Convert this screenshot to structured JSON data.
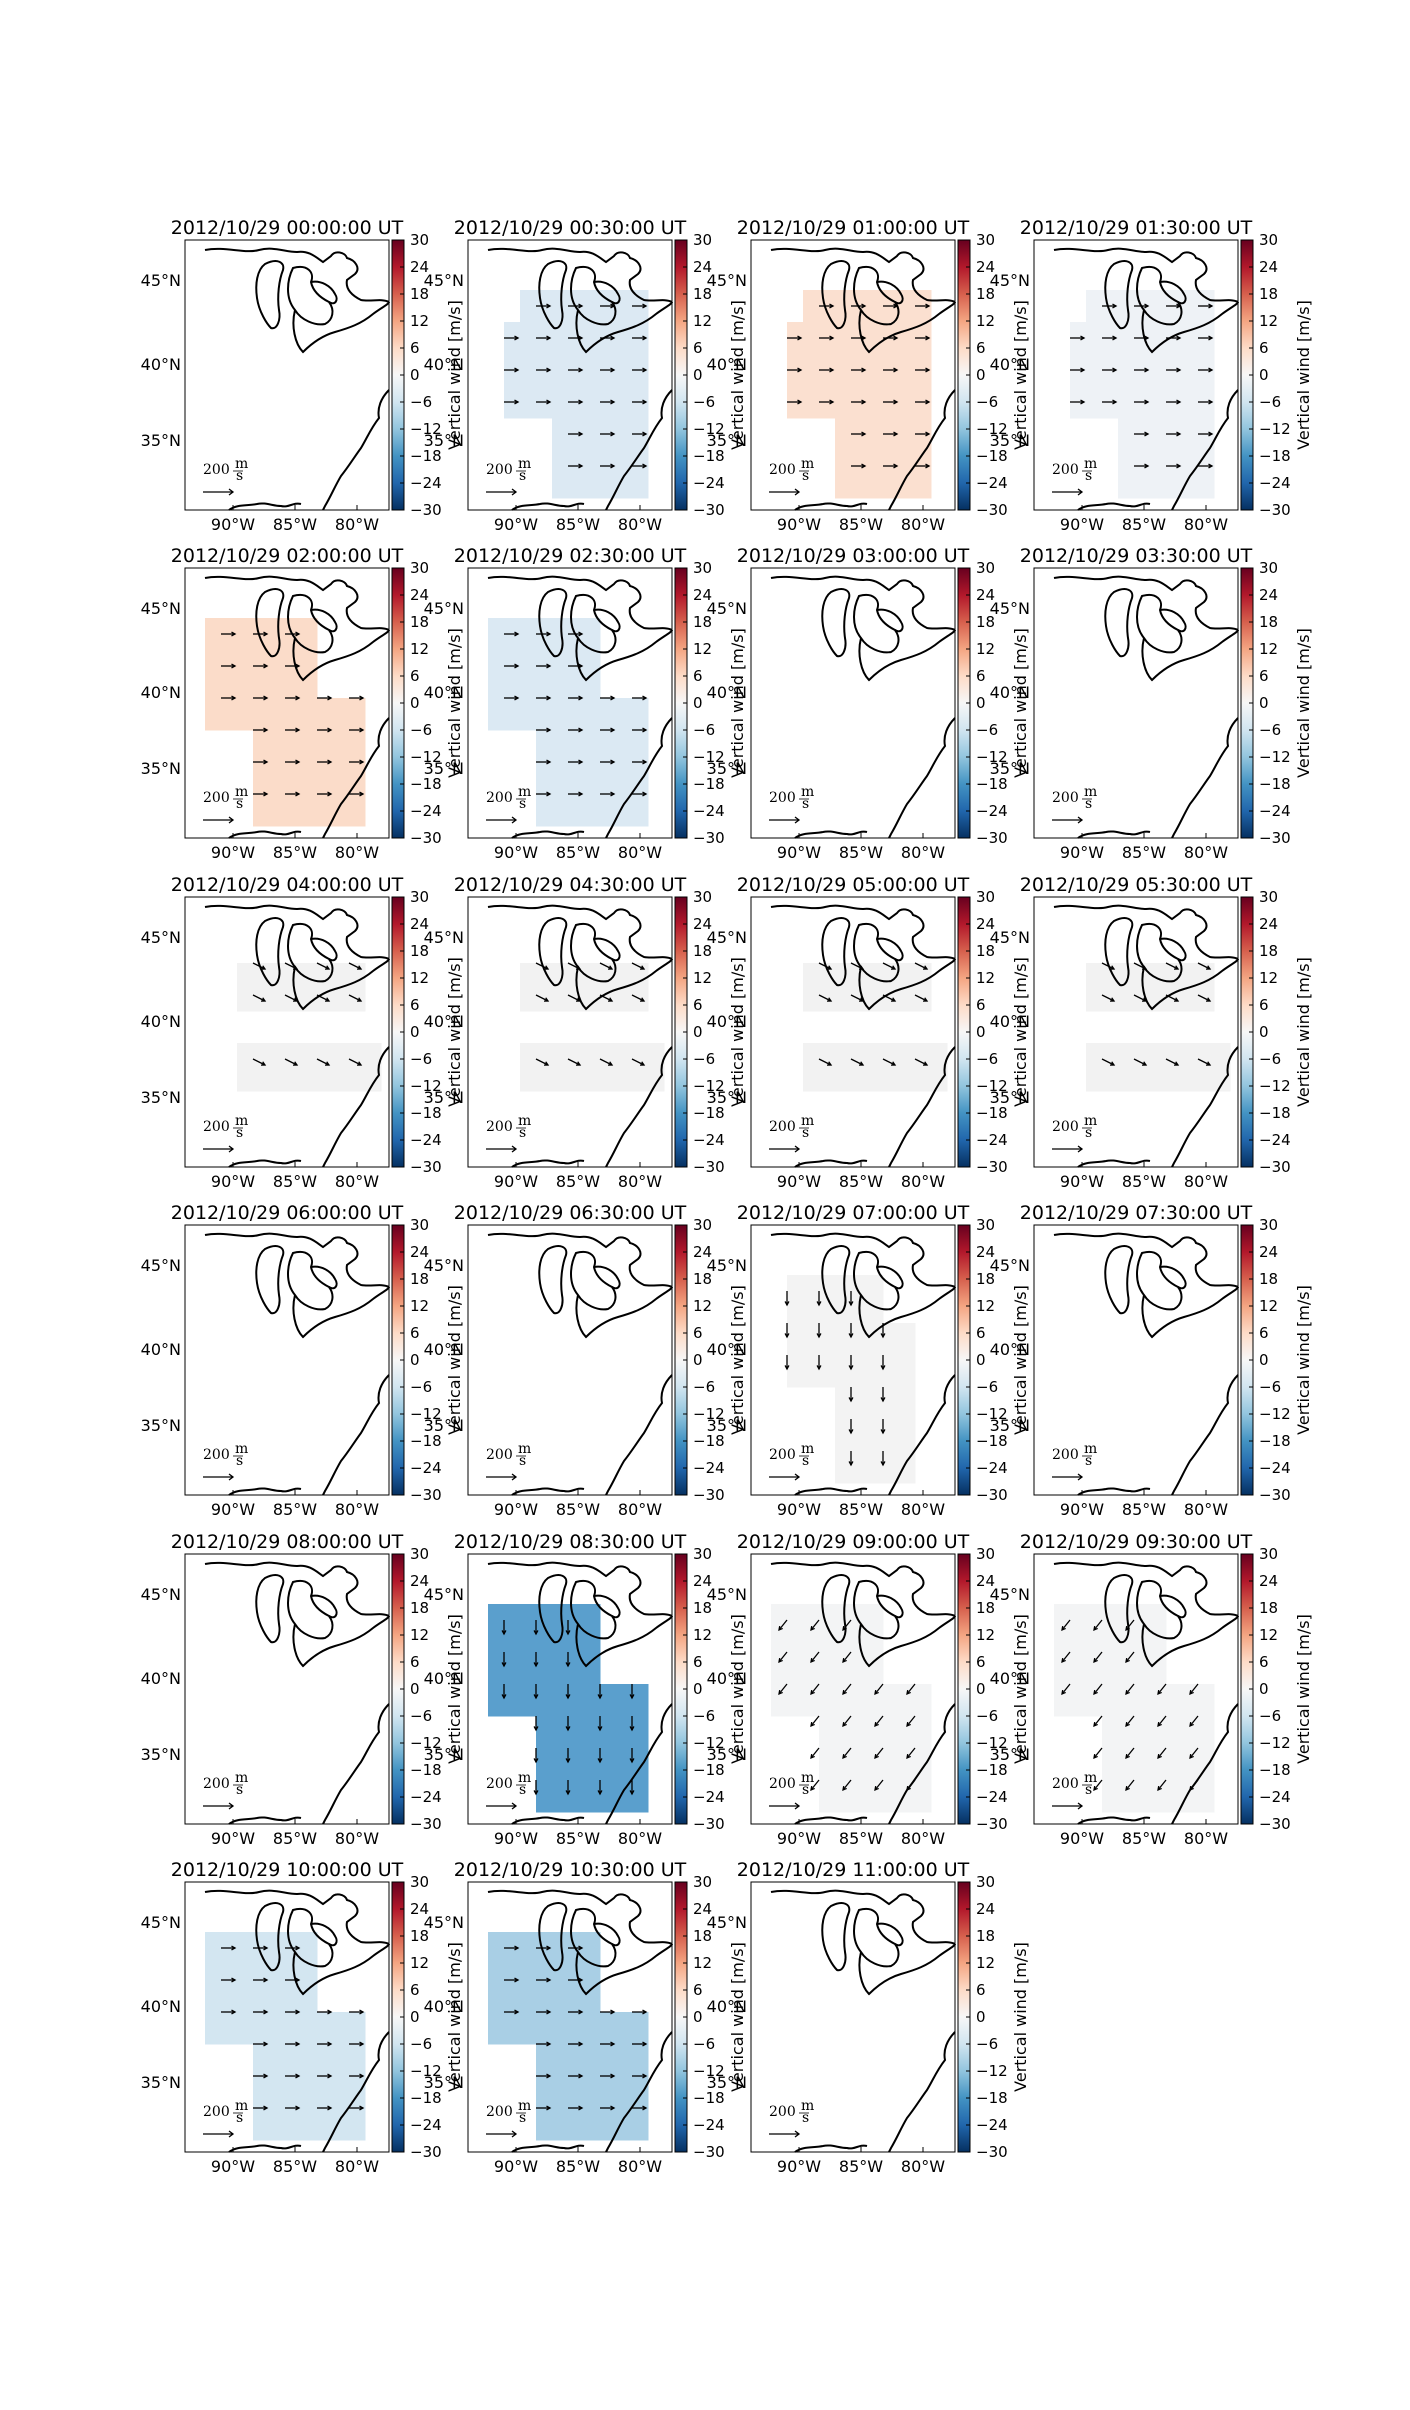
{
  "figure": {
    "colorbar": {
      "label": "Vertical wind [m/s]",
      "ticks": [
        "30",
        "24",
        "18",
        "12",
        "6",
        "0",
        "−6",
        "−12",
        "−18",
        "−24",
        "−30"
      ],
      "min": -30,
      "max": 30,
      "colormap": [
        "#67001f",
        "#b2182b",
        "#d6604d",
        "#f4a582",
        "#fddbc7",
        "#f7f7f7",
        "#d1e5f0",
        "#92c5de",
        "#4393c3",
        "#2166ac",
        "#053061"
      ]
    },
    "x_ticks": [
      "90°W",
      "85°W",
      "80°W"
    ],
    "y_ticks": [
      "45°N",
      "40°N",
      "35°N"
    ],
    "scale_key": {
      "number": "200",
      "num": "m",
      "den": "s"
    },
    "panels": [
      {
        "time": "2012/10/29 00:00:00 UT",
        "fill": "none",
        "shape": "none",
        "arrows": "none"
      },
      {
        "time": "2012/10/29 00:30:00 UT",
        "fill": "#dce9f3",
        "shape": "wide",
        "arrows": "east"
      },
      {
        "time": "2012/10/29 01:00:00 UT",
        "fill": "#fbe0d0",
        "shape": "wide",
        "arrows": "east"
      },
      {
        "time": "2012/10/29 01:30:00 UT",
        "fill": "#eef2f6",
        "shape": "wide",
        "arrows": "east"
      },
      {
        "time": "2012/10/29 02:00:00 UT",
        "fill": "#fbdcc9",
        "shape": "west",
        "arrows": "east"
      },
      {
        "time": "2012/10/29 02:30:00 UT",
        "fill": "#dbe9f3",
        "shape": "west",
        "arrows": "east"
      },
      {
        "time": "2012/10/29 03:00:00 UT",
        "fill": "none",
        "shape": "none",
        "arrows": "none"
      },
      {
        "time": "2012/10/29 03:30:00 UT",
        "fill": "none",
        "shape": "none",
        "arrows": "none"
      },
      {
        "time": "2012/10/29 04:00:00 UT",
        "fill": "#f2f2f2",
        "shape": "bands",
        "arrows": "southeast"
      },
      {
        "time": "2012/10/29 04:30:00 UT",
        "fill": "#f2f2f2",
        "shape": "bands",
        "arrows": "southeast"
      },
      {
        "time": "2012/10/29 05:00:00 UT",
        "fill": "#f2f2f2",
        "shape": "bands",
        "arrows": "southeast"
      },
      {
        "time": "2012/10/29 05:30:00 UT",
        "fill": "#f2f2f2",
        "shape": "bands",
        "arrows": "southeast"
      },
      {
        "time": "2012/10/29 06:00:00 UT",
        "fill": "none",
        "shape": "none",
        "arrows": "none"
      },
      {
        "time": "2012/10/29 06:30:00 UT",
        "fill": "none",
        "shape": "none",
        "arrows": "none"
      },
      {
        "time": "2012/10/29 07:00:00 UT",
        "fill": "#f3f3f3",
        "shape": "central",
        "arrows": "south"
      },
      {
        "time": "2012/10/29 07:30:00 UT",
        "fill": "none",
        "shape": "none",
        "arrows": "none"
      },
      {
        "time": "2012/10/29 08:00:00 UT",
        "fill": "none",
        "shape": "none",
        "arrows": "none"
      },
      {
        "time": "2012/10/29 08:30:00 UT",
        "fill": "#5a9fcd",
        "shape": "west",
        "arrows": "south"
      },
      {
        "time": "2012/10/29 09:00:00 UT",
        "fill": "#f3f4f5",
        "shape": "west",
        "arrows": "southwest"
      },
      {
        "time": "2012/10/29 09:30:00 UT",
        "fill": "#f3f4f5",
        "shape": "west",
        "arrows": "southwest"
      },
      {
        "time": "2012/10/29 10:00:00 UT",
        "fill": "#d3e6f1",
        "shape": "west",
        "arrows": "east"
      },
      {
        "time": "2012/10/29 10:30:00 UT",
        "fill": "#a9cfe5",
        "shape": "west",
        "arrows": "east"
      },
      {
        "time": "2012/10/29 11:00:00 UT",
        "fill": "none",
        "shape": "none",
        "arrows": "none"
      }
    ]
  }
}
